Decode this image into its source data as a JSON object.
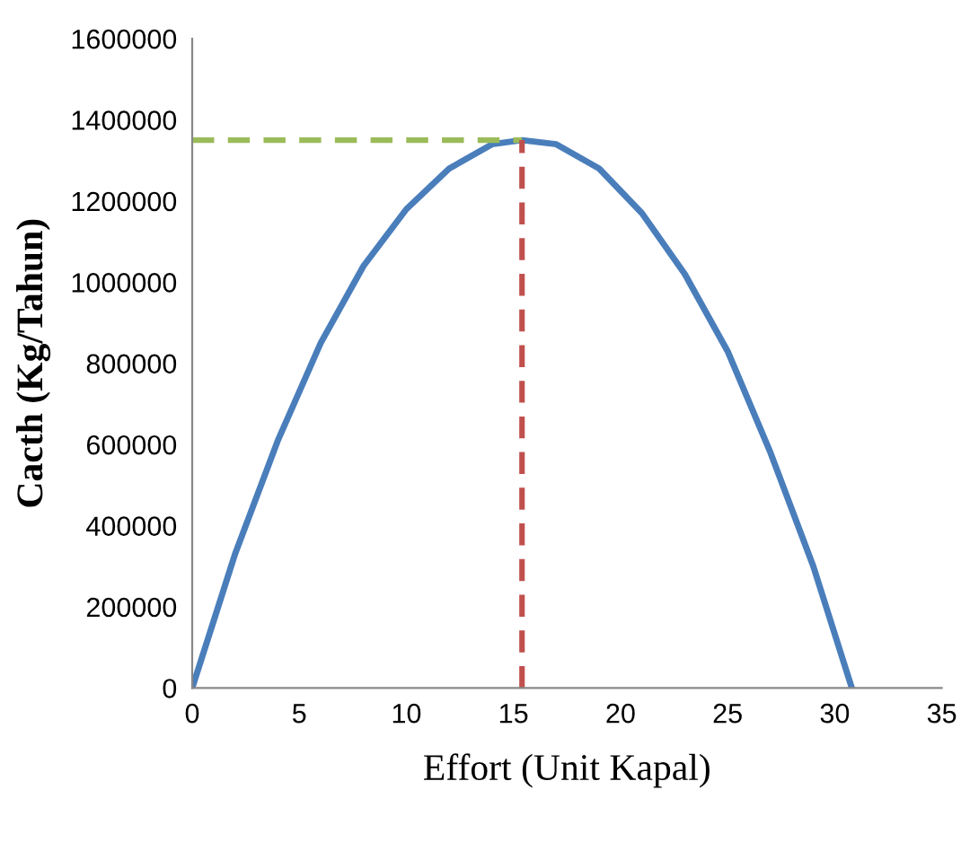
{
  "chart_data": {
    "type": "line",
    "xlabel": "Effort (Unit Kapal)",
    "ylabel": "Cacth (Kg/Tahun)",
    "xlim": [
      0,
      35
    ],
    "xticks": [
      0,
      5,
      10,
      15,
      20,
      25,
      30,
      35
    ],
    "ylim": [
      0,
      1600000
    ],
    "yticks": [
      0,
      200000,
      400000,
      600000,
      800000,
      1000000,
      1200000,
      1400000,
      1600000
    ],
    "grid": false,
    "legend": false,
    "marker": "none",
    "series": [
      {
        "color": "#4a7ebb",
        "line_style": "solid",
        "x": [
          0,
          2,
          4,
          6,
          8,
          10,
          12,
          14,
          15.4,
          17,
          19,
          21,
          23,
          25,
          27,
          29,
          30.8
        ],
        "values": [
          0,
          330000,
          610000,
          850000,
          1040000,
          1180000,
          1280000,
          1340000,
          1350000,
          1340000,
          1280000,
          1170000,
          1020000,
          830000,
          580000,
          300000,
          0
        ]
      },
      {
        "color": "#9bbb59",
        "line_style": "dashed",
        "x": [
          0,
          15.4
        ],
        "values": [
          1350000,
          1350000
        ]
      },
      {
        "color": "#c0504d",
        "line_style": "dashed",
        "x": [
          15.4,
          15.4
        ],
        "values": [
          0,
          1350000
        ]
      }
    ]
  }
}
